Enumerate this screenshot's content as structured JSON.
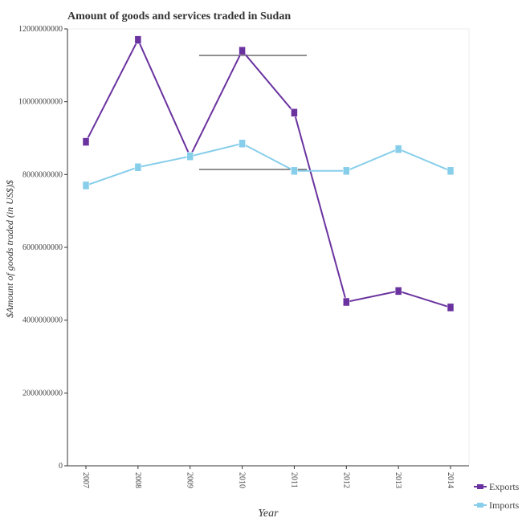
{
  "chart_data": {
    "type": "line",
    "title": "Amount of goods and services traded in Sudan",
    "xlabel": "Year",
    "ylabel": "$Amount of goods traded (in US$)$",
    "categories": [
      "2007",
      "2008",
      "2009",
      "2010",
      "2011",
      "2012",
      "2013",
      "2014"
    ],
    "ylim": [
      0,
      12000000000
    ],
    "yticks": [
      "0",
      "2000000000",
      "4000000000",
      "6000000000",
      "8000000000",
      "10000000000",
      "12000000000"
    ],
    "series": [
      {
        "name": "Exports",
        "color": "#6a329f",
        "values": [
          8900000000,
          11700000000,
          8500000000,
          11400000000,
          9700000000,
          4500000000,
          4800000000,
          4350000000
        ]
      },
      {
        "name": "Imports",
        "color": "#87ceeb",
        "values": [
          7700000000,
          8200000000,
          8500000000,
          8850000000,
          8100000000,
          8100000000,
          8700000000,
          8100000000
        ]
      }
    ],
    "legend_position": "bottom-right",
    "grid": false
  }
}
